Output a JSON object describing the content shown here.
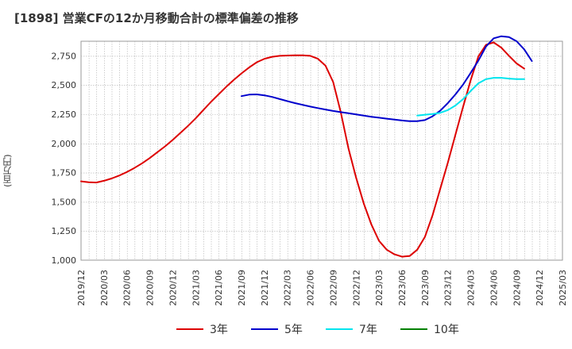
{
  "title": "[1898]  営業CFの12か月移動合計の標準偏差の推移",
  "y_unit_label": "(百万円)",
  "chart_data": {
    "type": "line",
    "title": "[1898]  営業CFの12か月移動合計の標準偏差の推移",
    "xlabel": "",
    "ylabel": "(百万円)",
    "ylim": [
      1000,
      2875
    ],
    "yticks": [
      1000,
      1250,
      1500,
      1750,
      2000,
      2250,
      2500,
      2750
    ],
    "ytick_labels": [
      "1,000",
      "1,250",
      "1,500",
      "1,750",
      "2,000",
      "2,250",
      "2,500",
      "2,750"
    ],
    "xtick_labels": [
      "2019/12",
      "2020/03",
      "2020/06",
      "2020/09",
      "2020/12",
      "2021/03",
      "2021/06",
      "2021/09",
      "2021/12",
      "2022/03",
      "2022/06",
      "2022/09",
      "2022/12",
      "2023/03",
      "2023/06",
      "2023/09",
      "2023/12",
      "2024/03",
      "2024/06",
      "2024/09",
      "2024/12",
      "2025/03"
    ],
    "grid": true,
    "legend_position": "bottom",
    "series": [
      {
        "name": "3年",
        "color": "#dd0000",
        "start": "2019/12",
        "values": [
          1675,
          1668,
          1665,
          1680,
          1700,
          1725,
          1755,
          1790,
          1830,
          1875,
          1925,
          1975,
          2030,
          2090,
          2150,
          2215,
          2285,
          2355,
          2420,
          2485,
          2545,
          2600,
          2650,
          2695,
          2725,
          2742,
          2750,
          2753,
          2755,
          2755,
          2750,
          2725,
          2665,
          2525,
          2265,
          1955,
          1705,
          1485,
          1305,
          1165,
          1090,
          1050,
          1030,
          1035,
          1090,
          1200,
          1385,
          1610,
          1835,
          2075,
          2315,
          2545,
          2745,
          2845,
          2865,
          2820,
          2750,
          2685,
          2640
        ]
      },
      {
        "name": "5年",
        "color": "#0000cc",
        "start": "2021/09",
        "values": [
          2405,
          2418,
          2420,
          2412,
          2398,
          2380,
          2362,
          2345,
          2330,
          2315,
          2302,
          2290,
          2278,
          2268,
          2258,
          2248,
          2238,
          2228,
          2220,
          2212,
          2204,
          2196,
          2190,
          2190,
          2200,
          2232,
          2280,
          2345,
          2420,
          2505,
          2605,
          2710,
          2830,
          2900,
          2918,
          2910,
          2875,
          2805,
          2705
        ]
      },
      {
        "name": "7年",
        "color": "#00e5ee",
        "start": "2023/08",
        "values": [
          2238,
          2246,
          2252,
          2262,
          2285,
          2325,
          2380,
          2450,
          2515,
          2550,
          2562,
          2562,
          2555,
          2550,
          2550
        ]
      },
      {
        "name": "10年",
        "color": "#008000",
        "start": "2024/09",
        "values": []
      }
    ]
  }
}
